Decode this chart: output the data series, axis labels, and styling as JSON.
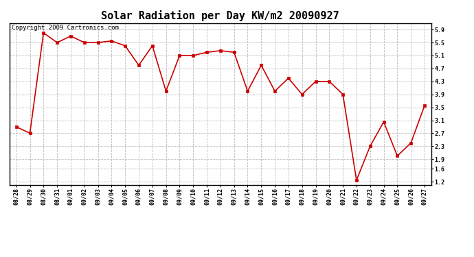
{
  "title": "Solar Radiation per Day KW/m2 20090927",
  "copyright": "Copyright 2009 Cartronics.com",
  "x_labels": [
    "08/28",
    "08/29",
    "08/30",
    "08/31",
    "09/01",
    "09/02",
    "09/03",
    "09/04",
    "09/05",
    "09/06",
    "09/07",
    "09/08",
    "09/09",
    "09/10",
    "09/11",
    "09/12",
    "09/13",
    "09/14",
    "09/15",
    "09/16",
    "09/17",
    "09/18",
    "09/19",
    "09/20",
    "09/21",
    "09/22",
    "09/23",
    "09/24",
    "09/25",
    "09/26",
    "09/27"
  ],
  "y_values": [
    2.9,
    2.7,
    5.8,
    5.5,
    5.7,
    5.5,
    5.5,
    5.55,
    5.4,
    4.8,
    5.4,
    4.0,
    5.1,
    5.1,
    5.2,
    5.25,
    5.2,
    4.0,
    4.8,
    4.0,
    4.4,
    3.9,
    4.3,
    4.3,
    3.9,
    1.25,
    2.3,
    3.05,
    2.0,
    2.4,
    3.55
  ],
  "line_color": "#cc0000",
  "marker": "s",
  "marker_size": 2.5,
  "ylim_min": 1.1,
  "ylim_max": 6.1,
  "yticks": [
    1.2,
    1.6,
    1.9,
    2.3,
    2.7,
    3.1,
    3.5,
    3.9,
    4.3,
    4.7,
    5.1,
    5.5,
    5.9
  ],
  "bg_color": "#ffffff",
  "grid_color": "#bbbbbb",
  "title_fontsize": 11,
  "tick_fontsize": 6,
  "copyright_fontsize": 6.5,
  "linewidth": 1.2
}
